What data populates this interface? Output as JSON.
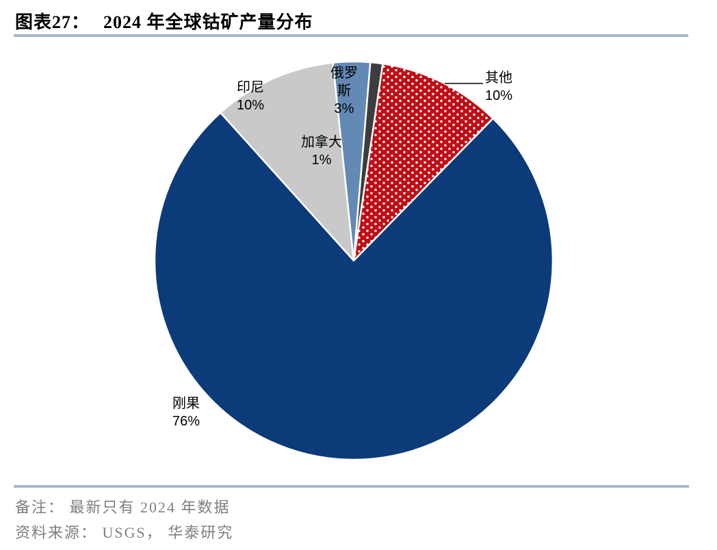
{
  "header": {
    "title_prefix": "图表27：",
    "title_text": "2024 年全球钴矿产量分布"
  },
  "chart_data": {
    "type": "pie",
    "title": "2024 年全球钴矿产量分布",
    "unit": "%",
    "direction": "clockwise",
    "start_angle_deg_clockwise_from_top": -42,
    "categories": [
      "印尼",
      "俄罗斯",
      "加拿大",
      "其他",
      "刚果"
    ],
    "values": [
      10,
      3,
      1,
      10,
      76
    ],
    "slices": [
      {
        "id": "indonesia",
        "label": "印尼",
        "value": 10,
        "value_label": "10%",
        "color": "#c9c9c9",
        "fill": "solid",
        "label_lines": [
          "印尼"
        ]
      },
      {
        "id": "russia",
        "label": "俄罗斯",
        "value": 3,
        "value_label": "3%",
        "color": "#6389b5",
        "fill": "solid",
        "label_lines": [
          "俄罗",
          "斯"
        ]
      },
      {
        "id": "canada",
        "label": "加拿大",
        "value": 1,
        "value_label": "1%",
        "color": "#3d3d3f",
        "fill": "solid",
        "label_lines": [
          "加拿大"
        ]
      },
      {
        "id": "other",
        "label": "其他",
        "value": 10,
        "value_label": "10%",
        "color": "#c00d16",
        "fill": "white-dots",
        "label_lines": [
          "其他"
        ]
      },
      {
        "id": "congo",
        "label": "刚果",
        "value": 76,
        "value_label": "76%",
        "color": "#0c3b7a",
        "fill": "solid",
        "label_lines": [
          "刚果"
        ]
      }
    ],
    "slice_border_color": "#ffffff",
    "legend": "none",
    "grid": false
  },
  "colors": {
    "rule": "#a7b7c9",
    "footer_text": "#7f7f7f",
    "label_text": "#000000",
    "leader_line": "#000000"
  },
  "footer": {
    "note": "备注： 最新只有 2024 年数据",
    "source": "资料来源： USGS， 华泰研究"
  }
}
